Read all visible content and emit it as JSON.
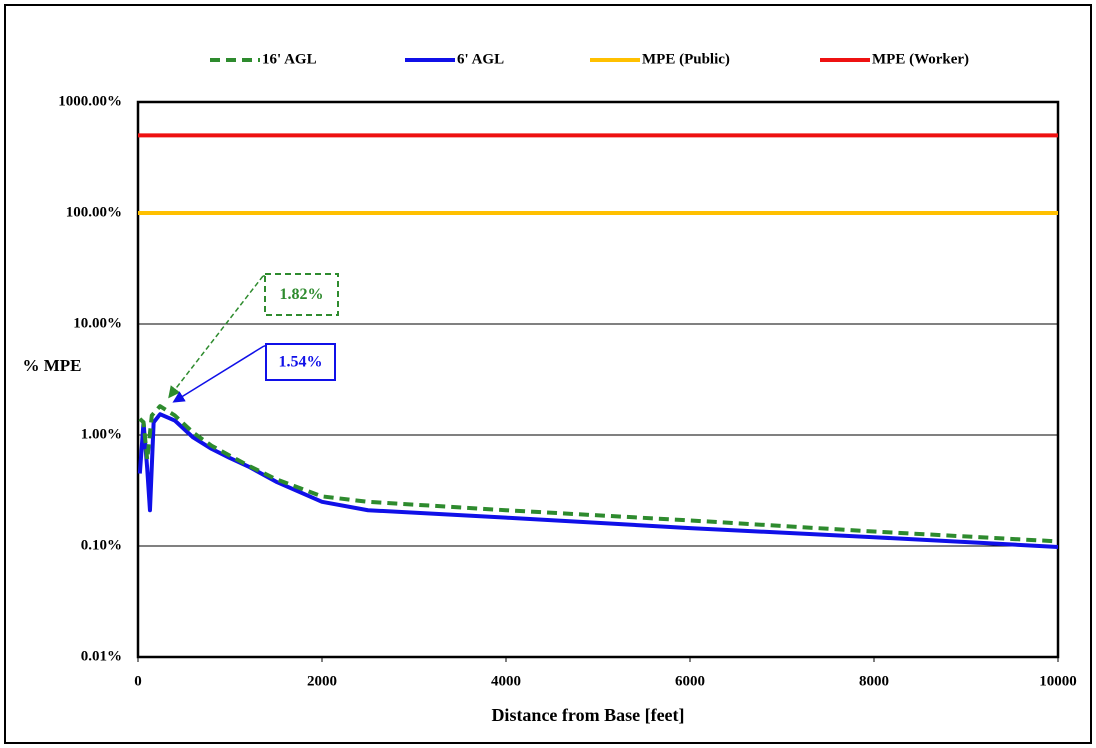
{
  "chart_data": {
    "type": "line",
    "xlabel": "Distance from Base [feet]",
    "ylabel": "% MPE",
    "xlim": [
      0,
      10000
    ],
    "xticks": [
      0,
      2000,
      4000,
      6000,
      8000,
      10000
    ],
    "ylim": [
      0.01,
      1000
    ],
    "yscale": "log",
    "yticks": [
      {
        "value": 0.01,
        "label": "0.01%"
      },
      {
        "value": 0.1,
        "label": "0.10%"
      },
      {
        "value": 1,
        "label": "1.00%"
      },
      {
        "value": 10,
        "label": "10.00%"
      },
      {
        "value": 100,
        "label": "100.00%"
      },
      {
        "value": 1000,
        "label": "1000.00%"
      }
    ],
    "grid": true,
    "legend": "top",
    "series": [
      {
        "name": "16' AGL",
        "color": "#2e8b2e",
        "dash": true,
        "x": [
          20,
          60,
          100,
          150,
          240,
          400,
          600,
          800,
          1000,
          1200,
          1500,
          2000,
          2500,
          4000,
          6000,
          8000,
          10000
        ],
        "values": [
          1.4,
          1.3,
          0.6,
          1.5,
          1.82,
          1.5,
          1.05,
          0.8,
          0.65,
          0.53,
          0.4,
          0.28,
          0.25,
          0.21,
          0.17,
          0.135,
          0.11
        ]
      },
      {
        "name": "6' AGL",
        "color": "#1010e8",
        "dash": false,
        "x": [
          20,
          60,
          100,
          130,
          170,
          240,
          400,
          600,
          800,
          1000,
          1200,
          1500,
          2000,
          2500,
          4000,
          6000,
          8000,
          10000
        ],
        "values": [
          0.45,
          1.3,
          0.5,
          0.21,
          1.3,
          1.54,
          1.35,
          0.95,
          0.75,
          0.62,
          0.52,
          0.38,
          0.25,
          0.21,
          0.18,
          0.145,
          0.12,
          0.098
        ]
      },
      {
        "name": "MPE (Public)",
        "color": "#ffc000",
        "dash": false,
        "x": [
          0,
          10000
        ],
        "values": [
          100,
          100
        ]
      },
      {
        "name": "MPE (Worker)",
        "color": "#ee1111",
        "dash": false,
        "x": [
          0,
          10000
        ],
        "values": [
          500,
          500
        ]
      }
    ],
    "annotations": [
      "1.82%",
      "1.54%"
    ]
  }
}
